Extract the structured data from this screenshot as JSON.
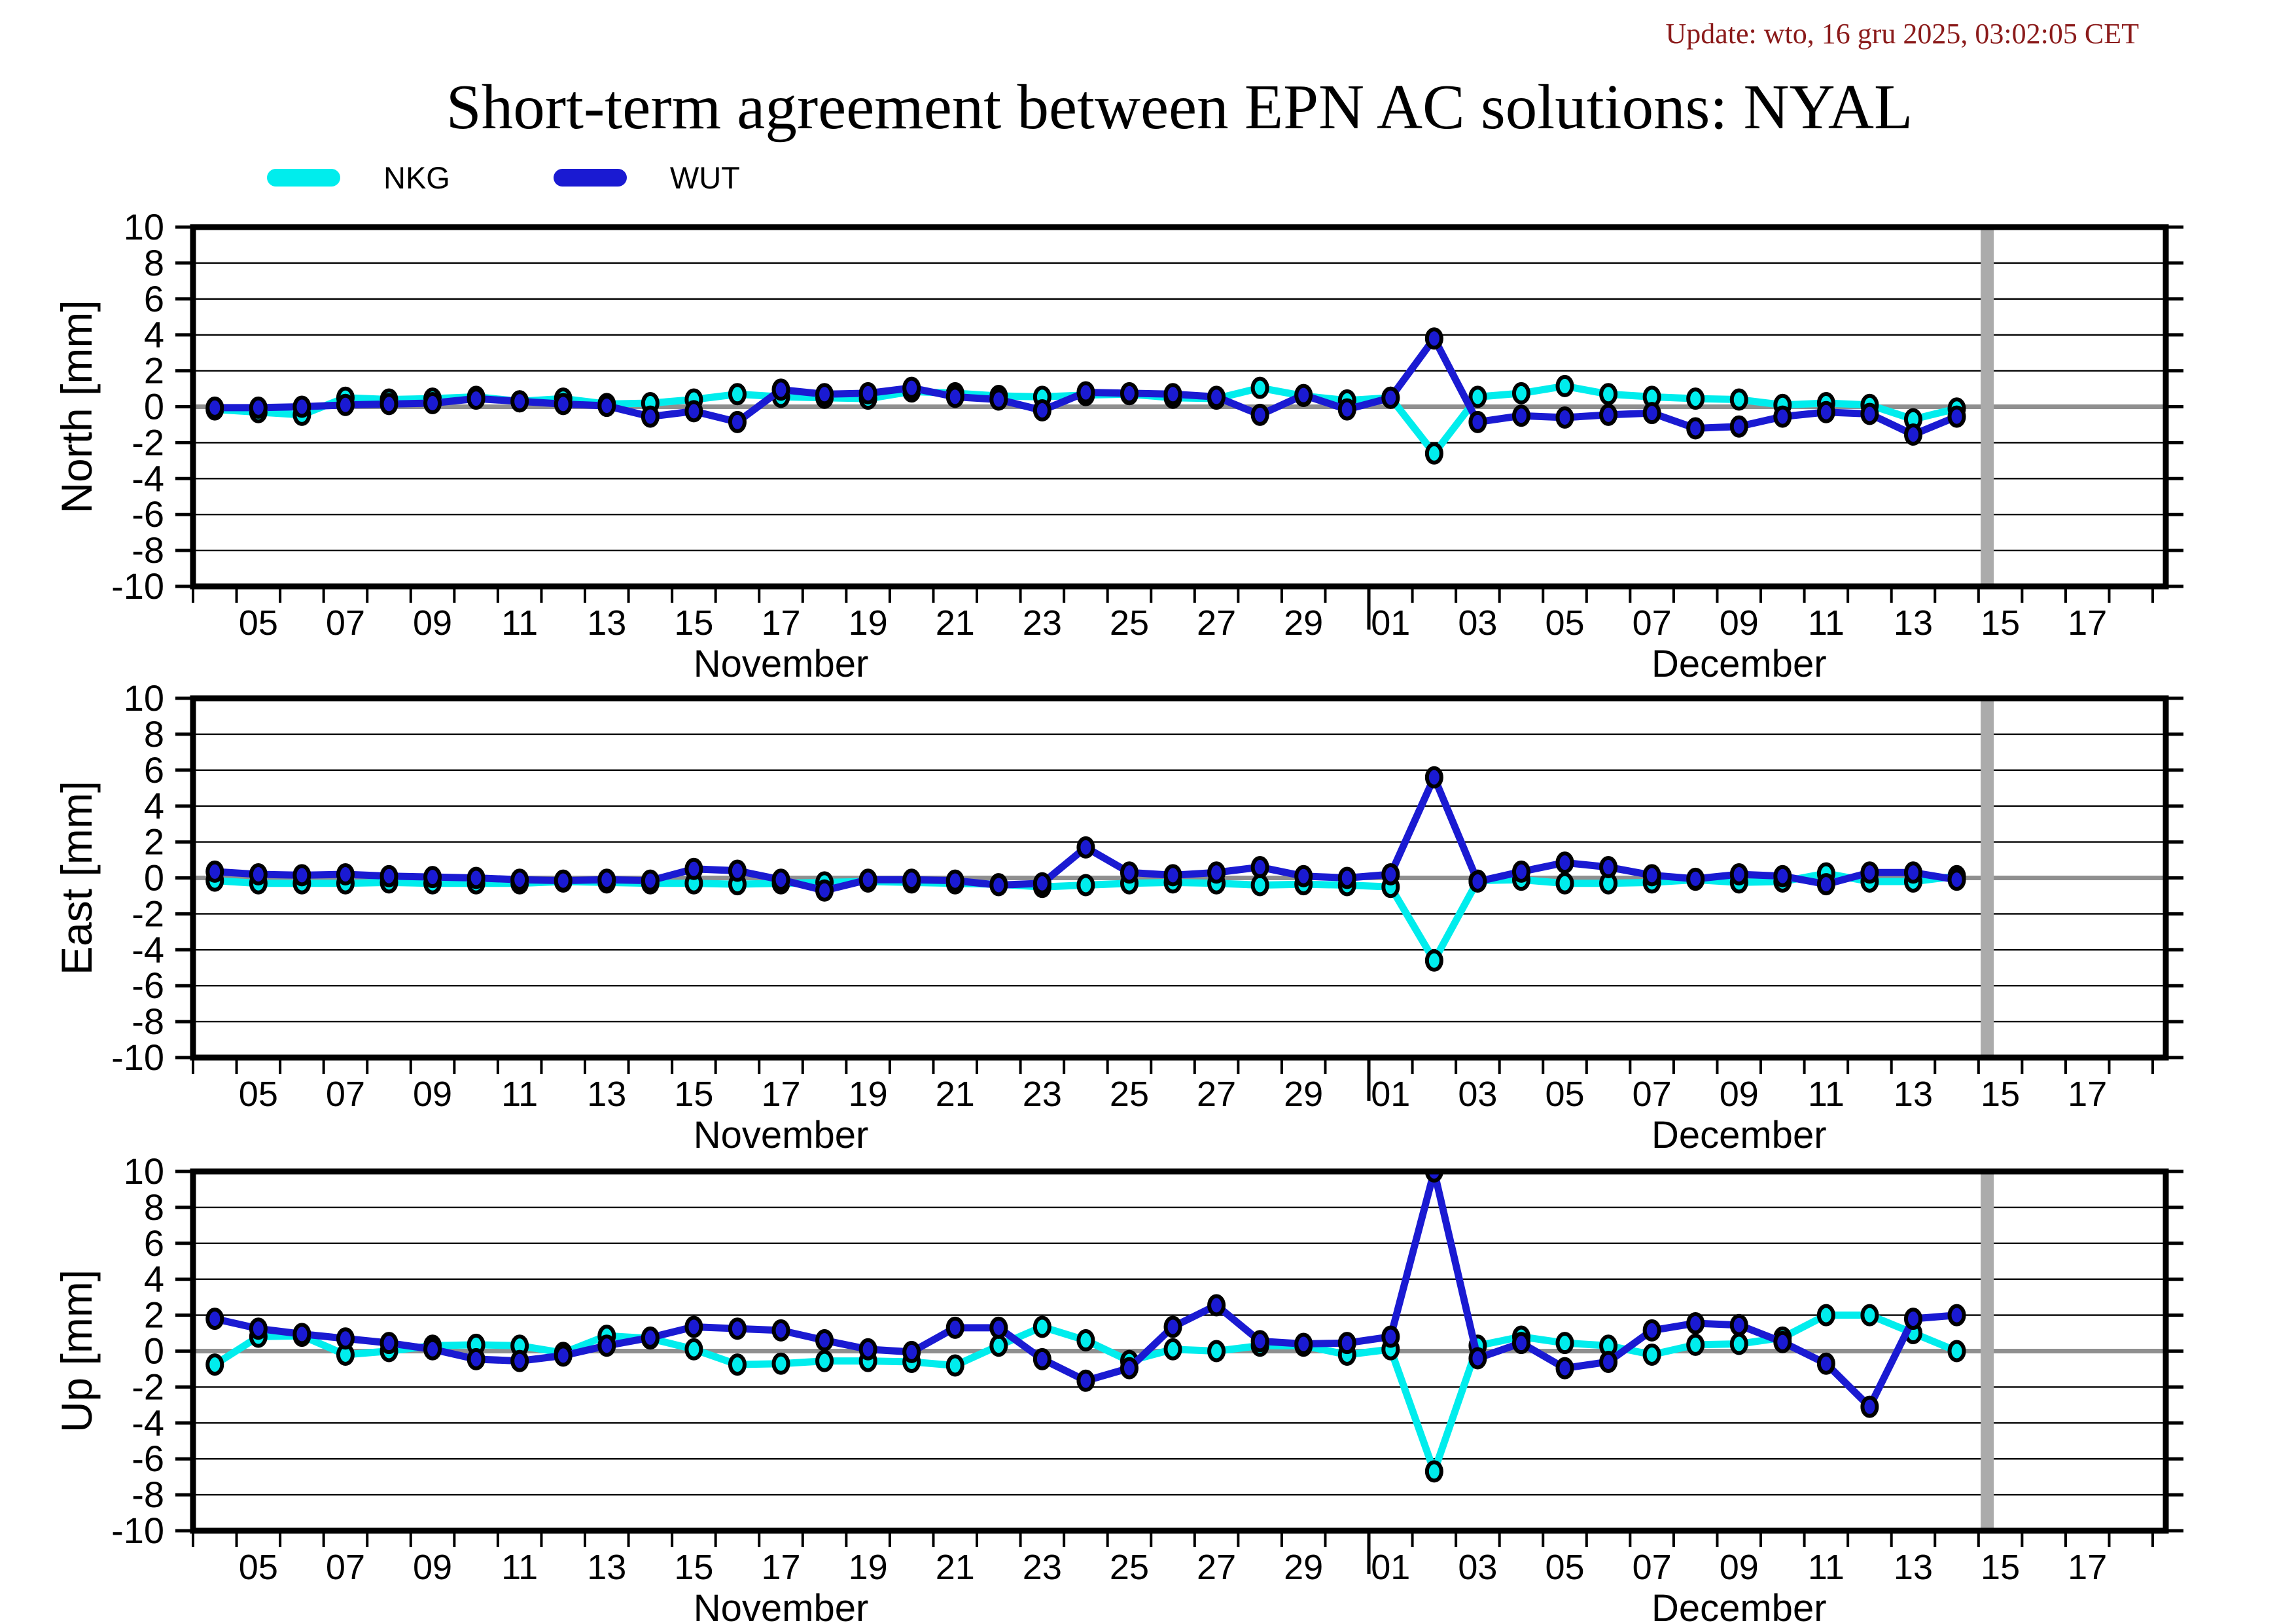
{
  "title": "Short-term agreement between EPN AC solutions: NYAL",
  "update_text": "Update: wto, 16 gru 2025, 03:02:05 CET",
  "colors": {
    "nkg": "#00EDED",
    "wut": "#1A1AD2",
    "update_text": "#8B1B1B",
    "zero_line": "#8F8F8F",
    "gridline": "#000000",
    "frame": "#000000",
    "current_epoch_bar": "#ABABAB",
    "background": "#FFFFFF"
  },
  "legend": [
    {
      "label": "NKG",
      "color_key": "nkg"
    },
    {
      "label": "WUT",
      "color_key": "wut"
    }
  ],
  "x_axis": {
    "dates": [
      "Nov 04",
      "Nov 05",
      "Nov 06",
      "Nov 07",
      "Nov 08",
      "Nov 09",
      "Nov 10",
      "Nov 11",
      "Nov 12",
      "Nov 13",
      "Nov 14",
      "Nov 15",
      "Nov 16",
      "Nov 17",
      "Nov 18",
      "Nov 19",
      "Nov 20",
      "Nov 21",
      "Nov 22",
      "Nov 23",
      "Nov 24",
      "Nov 25",
      "Nov 26",
      "Nov 27",
      "Nov 28",
      "Nov 29",
      "Nov 30",
      "Dec 01",
      "Dec 02",
      "Dec 03",
      "Dec 04",
      "Dec 05",
      "Dec 06",
      "Dec 07",
      "Dec 08",
      "Dec 09",
      "Dec 10",
      "Dec 11",
      "Dec 12",
      "Dec 13",
      "Dec 14"
    ],
    "axis_start": "Nov 04 00:00",
    "axis_length_days": 45.3,
    "day_tick_interval": 1,
    "labels": [
      {
        "text": "05",
        "day": 1.5
      },
      {
        "text": "07",
        "day": 3.5
      },
      {
        "text": "09",
        "day": 5.5
      },
      {
        "text": "11",
        "day": 7.5
      },
      {
        "text": "13",
        "day": 9.5
      },
      {
        "text": "15",
        "day": 11.5
      },
      {
        "text": "17",
        "day": 13.5
      },
      {
        "text": "19",
        "day": 15.5
      },
      {
        "text": "21",
        "day": 17.5
      },
      {
        "text": "23",
        "day": 19.5
      },
      {
        "text": "25",
        "day": 21.5
      },
      {
        "text": "27",
        "day": 23.5
      },
      {
        "text": "29",
        "day": 25.5
      },
      {
        "text": "01",
        "day": 27.5
      },
      {
        "text": "03",
        "day": 29.5
      },
      {
        "text": "05",
        "day": 31.5
      },
      {
        "text": "07",
        "day": 33.5
      },
      {
        "text": "09",
        "day": 35.5
      },
      {
        "text": "11",
        "day": 37.5
      },
      {
        "text": "13",
        "day": 39.5
      },
      {
        "text": "15",
        "day": 41.5
      },
      {
        "text": "17",
        "day": 43.5
      }
    ],
    "month_labels": [
      {
        "text": "November",
        "day": 13.5
      },
      {
        "text": "December",
        "day": 35.5
      }
    ],
    "month_separator_day": 27,
    "gray_bar_day": 41.2
  },
  "y_axis": {
    "tick_values": [
      10,
      8,
      6,
      4,
      2,
      0,
      -2,
      -4,
      -6,
      -8,
      -10
    ],
    "gridline_values": [
      8,
      6,
      4,
      2,
      -2,
      -4,
      -6,
      -8
    ]
  },
  "chart_data": [
    {
      "type": "line",
      "ylabel": "North [mm]",
      "ylim": [
        -10,
        10
      ],
      "x": [
        "Nov 04",
        "Nov 05",
        "Nov 06",
        "Nov 07",
        "Nov 08",
        "Nov 09",
        "Nov 10",
        "Nov 11",
        "Nov 12",
        "Nov 13",
        "Nov 14",
        "Nov 15",
        "Nov 16",
        "Nov 17",
        "Nov 18",
        "Nov 19",
        "Nov 20",
        "Nov 21",
        "Nov 22",
        "Nov 23",
        "Nov 24",
        "Nov 25",
        "Nov 26",
        "Nov 27",
        "Nov 28",
        "Nov 29",
        "Nov 30",
        "Dec 01",
        "Dec 02",
        "Dec 03",
        "Dec 04",
        "Dec 05",
        "Dec 06",
        "Dec 07",
        "Dec 08",
        "Dec 09",
        "Dec 10",
        "Dec 11",
        "Dec 12",
        "Dec 13",
        "Dec 14"
      ],
      "series": [
        {
          "name": "NKG",
          "values": [
            -0.15,
            -0.3,
            -0.45,
            0.5,
            0.4,
            0.45,
            0.55,
            0.3,
            0.45,
            0.15,
            0.2,
            0.4,
            0.7,
            0.55,
            0.5,
            0.45,
            0.85,
            0.75,
            0.6,
            0.55,
            0.65,
            0.7,
            0.5,
            0.45,
            1.05,
            0.6,
            0.35,
            0.5,
            -2.6,
            0.55,
            0.75,
            1.15,
            0.7,
            0.55,
            0.45,
            0.4,
            0.1,
            0.2,
            0.1,
            -0.7,
            -0.1
          ]
        },
        {
          "name": "WUT",
          "values": [
            -0.05,
            -0.05,
            0,
            0.1,
            0.15,
            0.2,
            0.45,
            0.3,
            0.15,
            0.05,
            -0.55,
            -0.25,
            -0.85,
            0.95,
            0.7,
            0.75,
            1.05,
            0.55,
            0.4,
            -0.2,
            0.8,
            0.75,
            0.7,
            0.55,
            -0.45,
            0.65,
            -0.15,
            0.5,
            3.8,
            -0.85,
            -0.5,
            -0.6,
            -0.45,
            -0.35,
            -1.2,
            -1.1,
            -0.55,
            -0.3,
            -0.4,
            -1.55,
            -0.55
          ]
        }
      ]
    },
    {
      "type": "line",
      "ylabel": "East [mm]",
      "ylim": [
        -10,
        10
      ],
      "x": [
        "Nov 04",
        "Nov 05",
        "Nov 06",
        "Nov 07",
        "Nov 08",
        "Nov 09",
        "Nov 10",
        "Nov 11",
        "Nov 12",
        "Nov 13",
        "Nov 14",
        "Nov 15",
        "Nov 16",
        "Nov 17",
        "Nov 18",
        "Nov 19",
        "Nov 20",
        "Nov 21",
        "Nov 22",
        "Nov 23",
        "Nov 24",
        "Nov 25",
        "Nov 26",
        "Nov 27",
        "Nov 28",
        "Nov 29",
        "Nov 30",
        "Dec 01",
        "Dec 02",
        "Dec 03",
        "Dec 04",
        "Dec 05",
        "Dec 06",
        "Dec 07",
        "Dec 08",
        "Dec 09",
        "Dec 10",
        "Dec 11",
        "Dec 12",
        "Dec 13",
        "Dec 14"
      ],
      "series": [
        {
          "name": "NKG",
          "values": [
            -0.15,
            -0.3,
            -0.3,
            -0.3,
            -0.25,
            -0.3,
            -0.3,
            -0.3,
            -0.2,
            -0.25,
            -0.3,
            -0.3,
            -0.35,
            -0.3,
            -0.25,
            -0.2,
            -0.25,
            -0.3,
            -0.35,
            -0.5,
            -0.4,
            -0.3,
            -0.25,
            -0.3,
            -0.4,
            -0.35,
            -0.4,
            -0.5,
            -4.6,
            -0.15,
            -0.1,
            -0.3,
            -0.3,
            -0.25,
            -0.1,
            -0.25,
            -0.2,
            0.25,
            -0.2,
            -0.2,
            0.1
          ]
        },
        {
          "name": "WUT",
          "values": [
            0.35,
            0.2,
            0.15,
            0.2,
            0.1,
            0.05,
            0,
            -0.1,
            -0.15,
            -0.1,
            -0.15,
            0.5,
            0.4,
            -0.1,
            -0.7,
            -0.1,
            -0.1,
            -0.15,
            -0.4,
            -0.3,
            1.7,
            0.3,
            0.15,
            0.3,
            0.6,
            0.1,
            0,
            0.2,
            5.6,
            -0.2,
            0.35,
            0.85,
            0.6,
            0.15,
            -0.05,
            0.2,
            0.1,
            -0.35,
            0.3,
            0.3,
            -0.1
          ]
        }
      ]
    },
    {
      "type": "line",
      "ylabel": "Up [mm]",
      "ylim": [
        -10,
        10
      ],
      "x": [
        "Nov 04",
        "Nov 05",
        "Nov 06",
        "Nov 07",
        "Nov 08",
        "Nov 09",
        "Nov 10",
        "Nov 11",
        "Nov 12",
        "Nov 13",
        "Nov 14",
        "Nov 15",
        "Nov 16",
        "Nov 17",
        "Nov 18",
        "Nov 19",
        "Nov 20",
        "Nov 21",
        "Nov 22",
        "Nov 23",
        "Nov 24",
        "Nov 25",
        "Nov 26",
        "Nov 27",
        "Nov 28",
        "Nov 29",
        "Nov 30",
        "Dec 01",
        "Dec 02",
        "Dec 03",
        "Dec 04",
        "Dec 05",
        "Dec 06",
        "Dec 07",
        "Dec 08",
        "Dec 09",
        "Dec 10",
        "Dec 11",
        "Dec 12",
        "Dec 13",
        "Dec 14"
      ],
      "series": [
        {
          "name": "NKG",
          "values": [
            -0.75,
            0.8,
            0.85,
            -0.2,
            0,
            0.3,
            0.35,
            0.3,
            -0.1,
            0.85,
            0.7,
            0.1,
            -0.75,
            -0.7,
            -0.55,
            -0.55,
            -0.6,
            -0.8,
            0.3,
            1.35,
            0.6,
            -0.55,
            0.1,
            0,
            0.3,
            0.3,
            -0.2,
            0.1,
            -6.7,
            0.3,
            0.8,
            0.45,
            0.3,
            -0.2,
            0.35,
            0.4,
            0.75,
            2,
            2,
            1,
            0
          ]
        },
        {
          "name": "WUT",
          "values": [
            1.8,
            1.25,
            0.95,
            0.7,
            0.45,
            0.1,
            -0.45,
            -0.55,
            -0.25,
            0.3,
            0.75,
            1.35,
            1.25,
            1.15,
            0.6,
            0.1,
            -0.05,
            1.3,
            1.3,
            -0.45,
            -1.65,
            -0.95,
            1.35,
            2.55,
            0.55,
            0.4,
            0.45,
            0.8,
            10,
            -0.4,
            0.45,
            -0.95,
            -0.6,
            1.15,
            1.55,
            1.45,
            0.5,
            -0.7,
            -3.1,
            1.8,
            2
          ]
        }
      ]
    }
  ]
}
